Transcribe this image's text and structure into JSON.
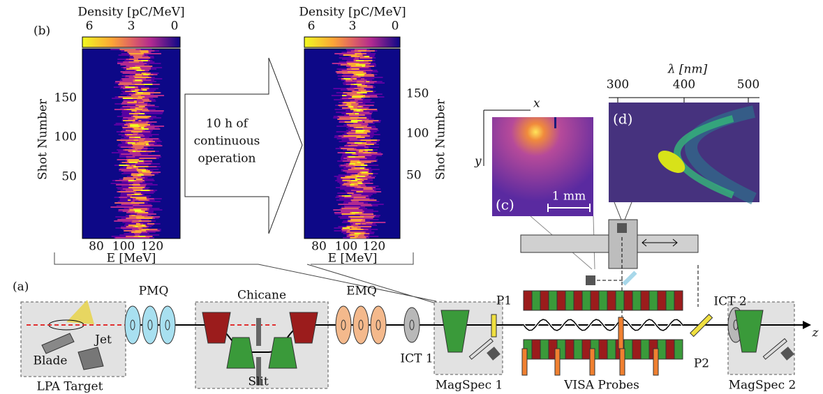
{
  "panel_b": {
    "label": "(b)",
    "colorbar_title": "Density [pC/MeV]",
    "colorbar_ticks": [
      "6",
      "3",
      "0"
    ],
    "y_label": "Shot Number",
    "y_ticks": [
      "50",
      "100",
      "150"
    ],
    "x_label": "E [MeV]",
    "x_ticks": [
      "80",
      "100",
      "120"
    ],
    "arrow_text": [
      "10 h of",
      "continuous",
      "operation"
    ]
  },
  "panel_c": {
    "label": "(c)",
    "x_axis": "x",
    "y_axis": "y",
    "scale_bar": "1 mm"
  },
  "panel_d": {
    "label": "(d)",
    "axis_label": "λ [nm]",
    "ticks": [
      "300",
      "400",
      "500"
    ]
  },
  "panel_a": {
    "label": "(a)",
    "lpa_target": "LPA Target",
    "blade": "Blade",
    "jet": "Jet",
    "pmq": "PMQ",
    "chicane": "Chicane",
    "slit": "Slit",
    "emq": "EMQ",
    "ict1": "ICT 1",
    "magspec1": "MagSpec 1",
    "p1": "P1",
    "visa": "VISA Probes",
    "ict2": "ICT 2",
    "p2": "P2",
    "magspec2": "MagSpec 2",
    "z": "z"
  }
}
